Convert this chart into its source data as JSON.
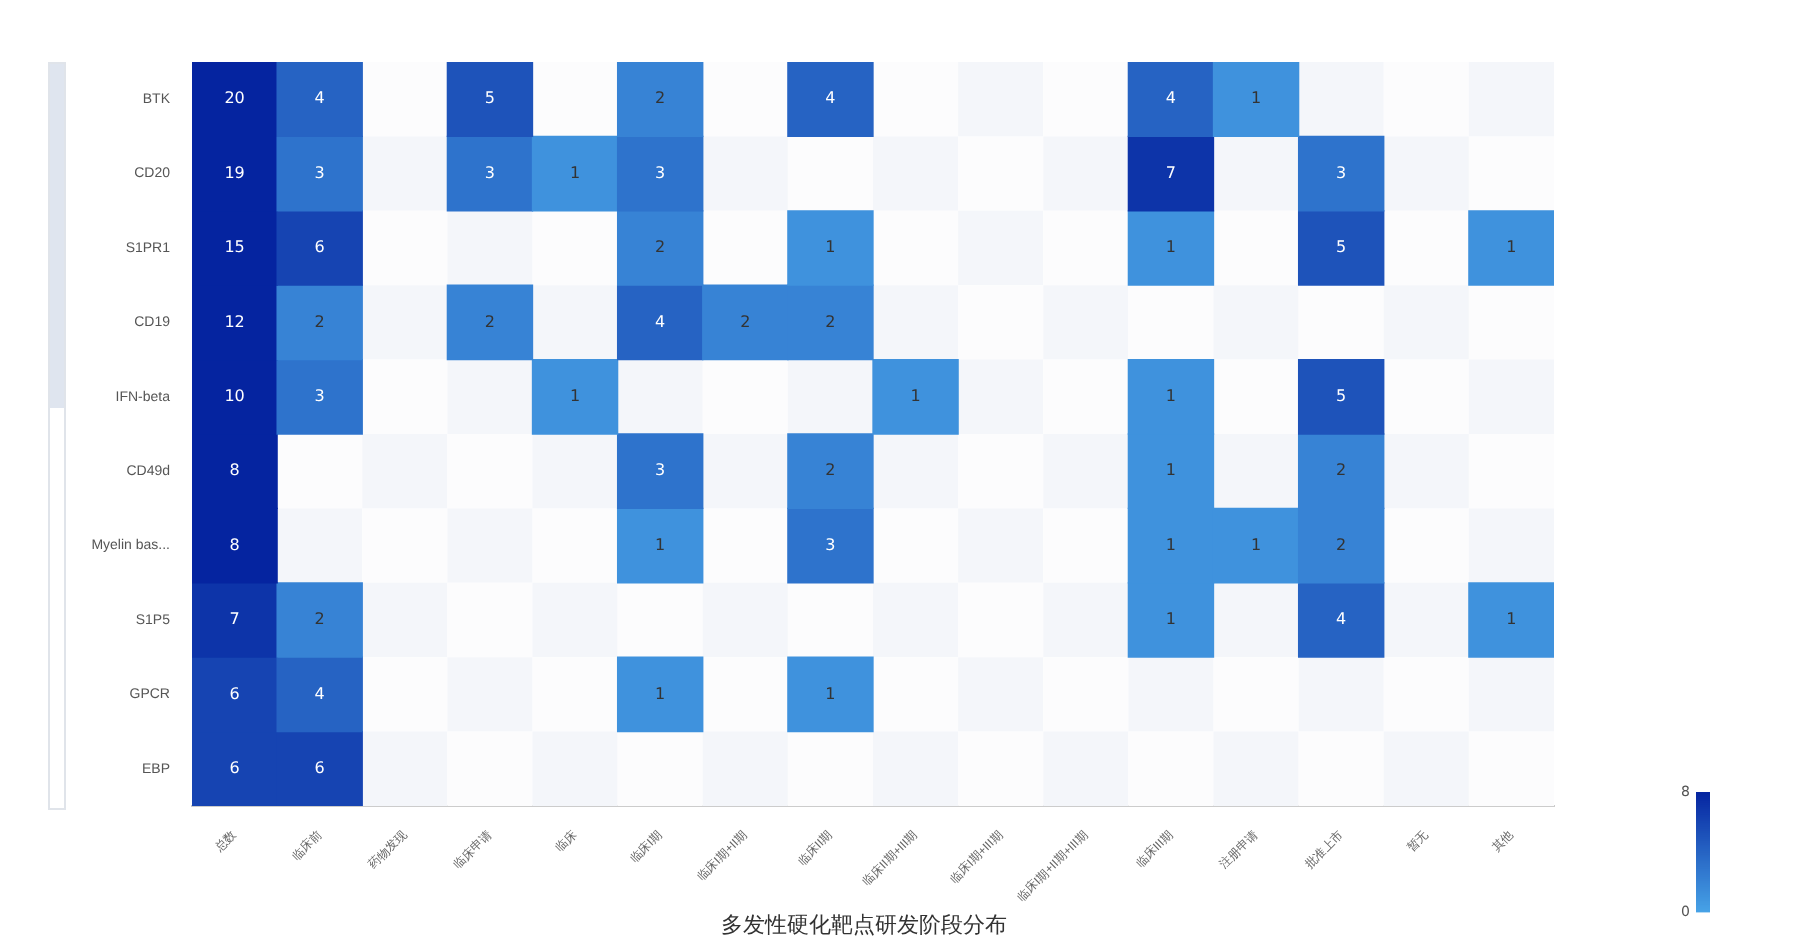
{
  "chart_data": {
    "type": "heatmap",
    "title": "多发性硬化靶点研发阶段分布",
    "categories": [
      "总数",
      "临床前",
      "药物发现",
      "临床申请",
      "临床",
      "临床I期",
      "临床I期+II期",
      "临床II期",
      "临床II期+III期",
      "临床I期+III期",
      "临床I期+II期+III期",
      "临床III期",
      "注册申请",
      "批准上市",
      "暂无",
      "其他"
    ],
    "y_categories": [
      "BTK",
      "CD20",
      "S1PR1",
      "CD19",
      "IFN-beta",
      "CD49d",
      "Myelin bas...",
      "S1P5",
      "GPCR",
      "EBP"
    ],
    "cells": [
      [
        20,
        4,
        null,
        5,
        null,
        2,
        null,
        4,
        null,
        null,
        null,
        4,
        1,
        null,
        null,
        null
      ],
      [
        19,
        3,
        null,
        3,
        1,
        3,
        null,
        null,
        null,
        null,
        null,
        7,
        null,
        3,
        null,
        null
      ],
      [
        15,
        6,
        null,
        null,
        null,
        2,
        null,
        1,
        null,
        null,
        null,
        1,
        null,
        5,
        null,
        1
      ],
      [
        12,
        2,
        null,
        2,
        null,
        4,
        2,
        2,
        null,
        null,
        null,
        null,
        null,
        null,
        null,
        null
      ],
      [
        10,
        3,
        null,
        null,
        1,
        null,
        null,
        null,
        1,
        null,
        null,
        1,
        null,
        5,
        null,
        null
      ],
      [
        8,
        null,
        null,
        null,
        null,
        3,
        null,
        2,
        null,
        null,
        null,
        1,
        null,
        2,
        null,
        null
      ],
      [
        8,
        null,
        null,
        null,
        null,
        1,
        null,
        3,
        null,
        null,
        null,
        1,
        1,
        2,
        null,
        null
      ],
      [
        7,
        2,
        null,
        null,
        null,
        null,
        null,
        null,
        null,
        null,
        null,
        1,
        null,
        4,
        null,
        1
      ],
      [
        6,
        4,
        null,
        null,
        null,
        1,
        null,
        1,
        null,
        null,
        null,
        null,
        null,
        null,
        null,
        null
      ],
      [
        6,
        6,
        null,
        null,
        null,
        null,
        null,
        null,
        null,
        null,
        null,
        null,
        null,
        null,
        null,
        null
      ]
    ],
    "clim": [
      0,
      8
    ],
    "cticks": [
      0,
      8
    ],
    "data_labels": true
  }
}
